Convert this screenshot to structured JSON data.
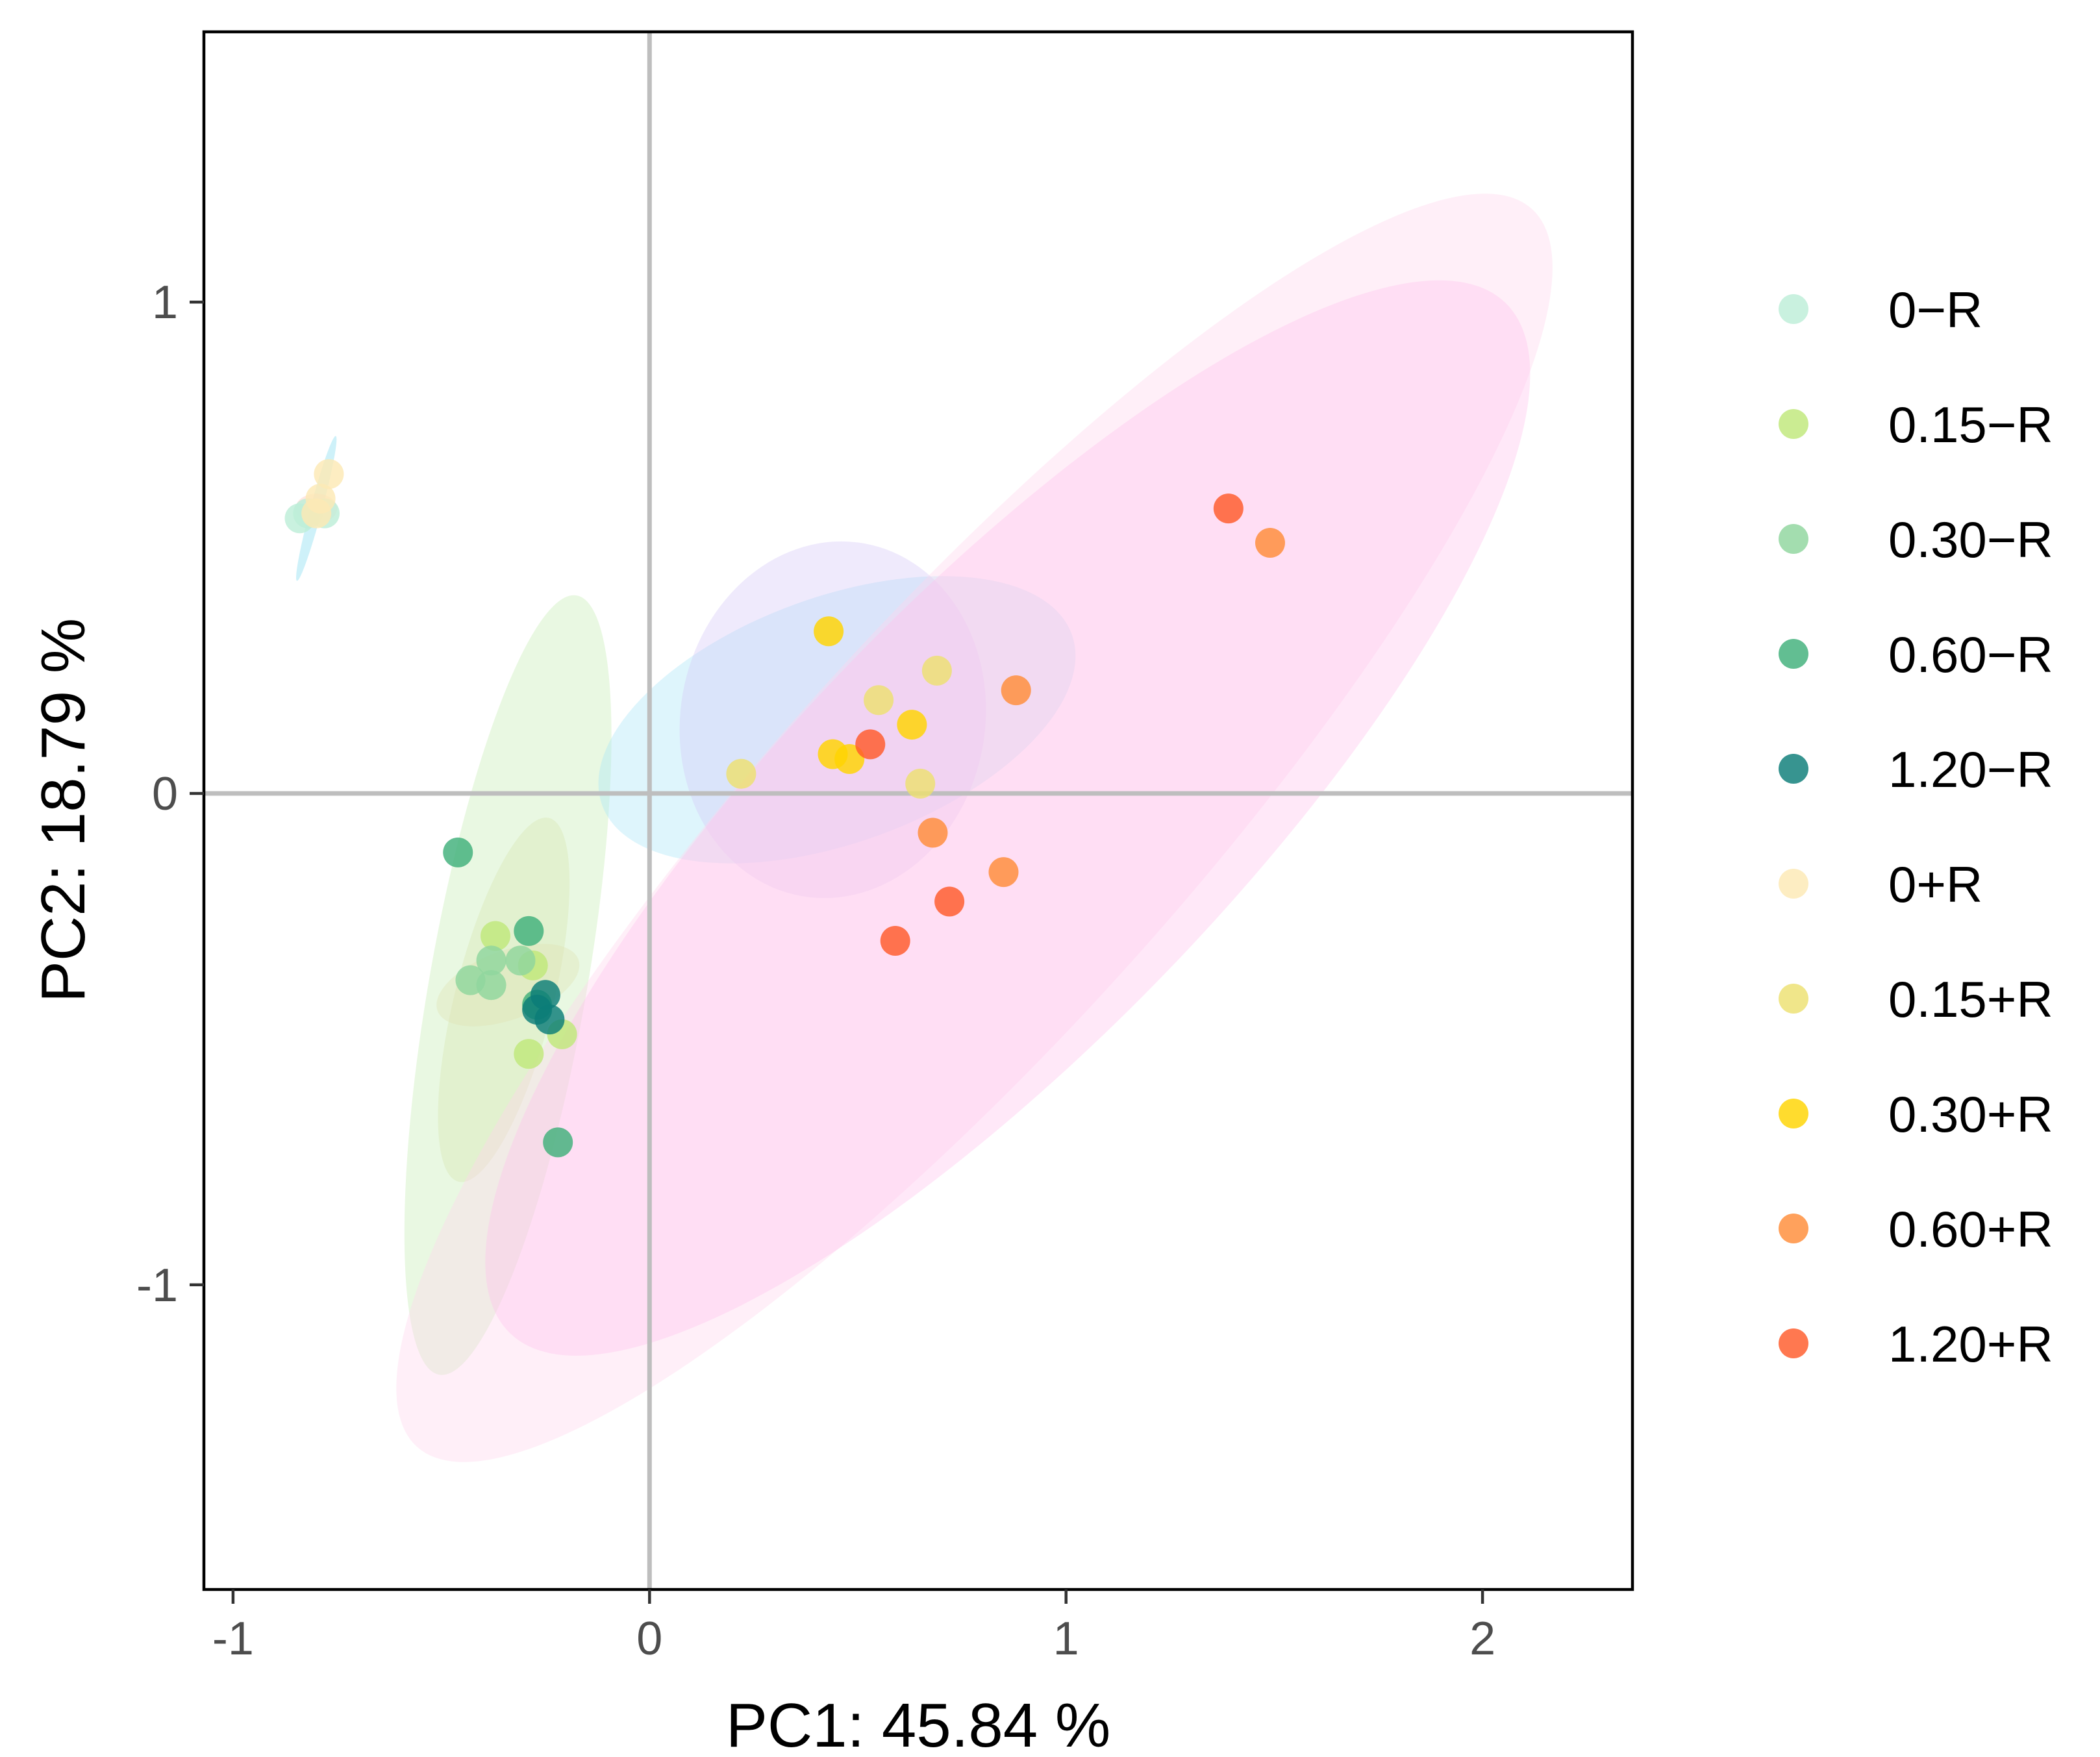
{
  "chart_data": {
    "type": "scatter",
    "title": "",
    "xlabel": "PC1: 45.84 %",
    "ylabel": "PC2: 18.79 %",
    "xlim": [
      -1.07,
      2.36
    ],
    "ylim": [
      -1.62,
      1.55
    ],
    "xticks": [
      {
        "value": -1,
        "label": "-1"
      },
      {
        "value": 0,
        "label": "0"
      },
      {
        "value": 1,
        "label": "1"
      },
      {
        "value": 2,
        "label": "2"
      }
    ],
    "yticks": [
      {
        "value": -1,
        "label": "-1"
      },
      {
        "value": 0,
        "label": "0"
      },
      {
        "value": 1,
        "label": "1"
      }
    ],
    "reference_lines": {
      "x": 0,
      "y": 0
    },
    "legend_position": "right",
    "series": [
      {
        "name": "0−R",
        "color": "#bdeed8",
        "points": [
          [
            -0.84,
            0.56
          ],
          [
            -0.82,
            0.57
          ],
          [
            -0.78,
            0.57
          ]
        ]
      },
      {
        "name": "0.15−R",
        "color": "#bfe87a",
        "points": [
          [
            -0.37,
            -0.29
          ],
          [
            -0.28,
            -0.35
          ],
          [
            -0.29,
            -0.53
          ],
          [
            -0.21,
            -0.49
          ]
        ]
      },
      {
        "name": "0.30−R",
        "color": "#8fd69e",
        "points": [
          [
            -0.43,
            -0.38
          ],
          [
            -0.38,
            -0.34
          ],
          [
            -0.38,
            -0.39
          ],
          [
            -0.31,
            -0.34
          ]
        ]
      },
      {
        "name": "0.60−R",
        "color": "#3fb07a",
        "points": [
          [
            -0.46,
            -0.12
          ],
          [
            -0.29,
            -0.28
          ],
          [
            -0.27,
            -0.43
          ],
          [
            -0.22,
            -0.71
          ]
        ]
      },
      {
        "name": "1.20−R",
        "color": "#0b7d78",
        "points": [
          [
            -0.25,
            -0.41
          ],
          [
            -0.24,
            -0.46
          ],
          [
            -0.27,
            -0.44
          ]
        ]
      },
      {
        "name": "0+R",
        "color": "#fde9b4",
        "points": [
          [
            -0.8,
            0.57
          ],
          [
            -0.79,
            0.6
          ],
          [
            -0.77,
            0.65
          ]
        ]
      },
      {
        "name": "0.15+R",
        "color": "#ede070",
        "points": [
          [
            0.22,
            0.04
          ],
          [
            0.69,
            0.25
          ],
          [
            0.55,
            0.19
          ],
          [
            0.65,
            0.02
          ]
        ]
      },
      {
        "name": "0.30+R",
        "color": "#ffd400",
        "points": [
          [
            0.43,
            0.33
          ],
          [
            0.44,
            0.08
          ],
          [
            0.48,
            0.07
          ],
          [
            0.63,
            0.14
          ]
        ]
      },
      {
        "name": "0.60+R",
        "color": "#ff8c38",
        "points": [
          [
            1.49,
            0.51
          ],
          [
            0.88,
            0.21
          ],
          [
            0.85,
            -0.16
          ],
          [
            0.68,
            -0.08
          ]
        ]
      },
      {
        "name": "1.20+R",
        "color": "#ff5a2a",
        "points": [
          [
            1.39,
            0.58
          ],
          [
            0.72,
            -0.22
          ],
          [
            0.59,
            -0.3
          ],
          [
            0.53,
            0.1
          ]
        ]
      }
    ],
    "ellipses": [
      {
        "group": "0−R",
        "cx": -0.8,
        "cy": 0.58,
        "rx": 0.18,
        "ry": 0.012,
        "angle_deg": 75,
        "color": "#7ed9f0"
      },
      {
        "group": "0+R",
        "cx": -0.8,
        "cy": 0.58,
        "rx": 0.05,
        "ry": 0.03,
        "angle_deg": 0,
        "color": "#ffc1b4"
      },
      {
        "group": "0.15−R",
        "cx": -0.34,
        "cy": -0.39,
        "rx": 0.95,
        "ry": 0.16,
        "angle_deg": 80,
        "color": "#c6ecb4"
      },
      {
        "group": "0.30−R",
        "cx": -0.35,
        "cy": -0.42,
        "rx": 0.45,
        "ry": 0.1,
        "angle_deg": 76,
        "color": "#d8e4b0"
      },
      {
        "group": "0.60−R",
        "cx": -0.34,
        "cy": -0.39,
        "rx": 0.18,
        "ry": 0.07,
        "angle_deg": 20,
        "color": "#e0e2b4"
      },
      {
        "group": "0.15+R",
        "cx": 0.45,
        "cy": 0.15,
        "rx": 0.6,
        "ry": 0.25,
        "angle_deg": 20,
        "color": "#a8e6f8"
      },
      {
        "group": "0.30+R",
        "cx": 0.44,
        "cy": 0.15,
        "rx": 0.43,
        "ry": 0.31,
        "angle_deg": 80,
        "color": "#d6c8f6"
      },
      {
        "group": "0.60+R",
        "cx": 0.78,
        "cy": -0.07,
        "rx": 2.0,
        "ry": 0.42,
        "angle_deg": 48,
        "color": "#ffd6ec"
      },
      {
        "group": "1.20+R",
        "cx": 0.86,
        "cy": -0.05,
        "rx": 1.72,
        "ry": 0.45,
        "angle_deg": 46,
        "color": "#ffc2ec"
      }
    ]
  }
}
